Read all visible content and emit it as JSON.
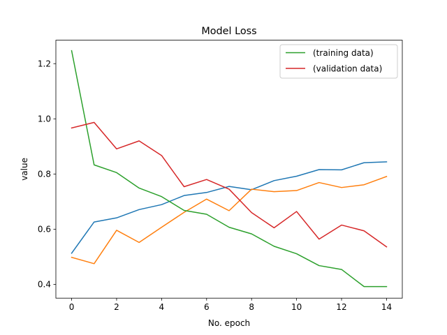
{
  "chart_data": {
    "type": "line",
    "title": "Model Loss",
    "xlabel": "No. epoch",
    "ylabel": "value",
    "x": [
      0,
      1,
      2,
      3,
      4,
      5,
      6,
      7,
      8,
      9,
      10,
      11,
      12,
      13,
      14
    ],
    "xlim": [
      -0.7,
      14.7
    ],
    "ylim": [
      0.35,
      1.285
    ],
    "xticks": [
      0,
      2,
      4,
      6,
      8,
      10,
      12,
      14
    ],
    "yticks": [
      0.4,
      0.6,
      0.8,
      1.0,
      1.2
    ],
    "xtick_labels": [
      "0",
      "2",
      "4",
      "6",
      "8",
      "10",
      "12",
      "14"
    ],
    "ytick_labels": [
      "0.4",
      "0.6",
      "0.8",
      "1.0",
      "1.2"
    ],
    "grid": false,
    "legend_position": "top-right",
    "series": [
      {
        "color": "#1f77b4",
        "values": [
          0.513,
          0.626,
          0.641,
          0.671,
          0.689,
          0.722,
          0.733,
          0.755,
          0.743,
          0.776,
          0.792,
          0.816,
          0.815,
          0.841,
          0.844
        ]
      },
      {
        "color": "#ff7f0e",
        "values": [
          0.498,
          0.475,
          0.596,
          0.552,
          0.607,
          0.661,
          0.709,
          0.667,
          0.745,
          0.736,
          0.74,
          0.769,
          0.751,
          0.761,
          0.791
        ]
      },
      {
        "name": "(training data)",
        "color": "#2ca02c",
        "values": [
          1.247,
          0.833,
          0.805,
          0.749,
          0.718,
          0.668,
          0.654,
          0.607,
          0.583,
          0.538,
          0.511,
          0.468,
          0.454,
          0.392,
          0.392
        ]
      },
      {
        "name": "(validation data)",
        "color": "#d62728",
        "values": [
          0.967,
          0.987,
          0.891,
          0.92,
          0.867,
          0.754,
          0.78,
          0.745,
          0.66,
          0.605,
          0.664,
          0.564,
          0.615,
          0.594,
          0.536
        ]
      }
    ],
    "legend": [
      "(training data)",
      "(validation data)"
    ]
  }
}
